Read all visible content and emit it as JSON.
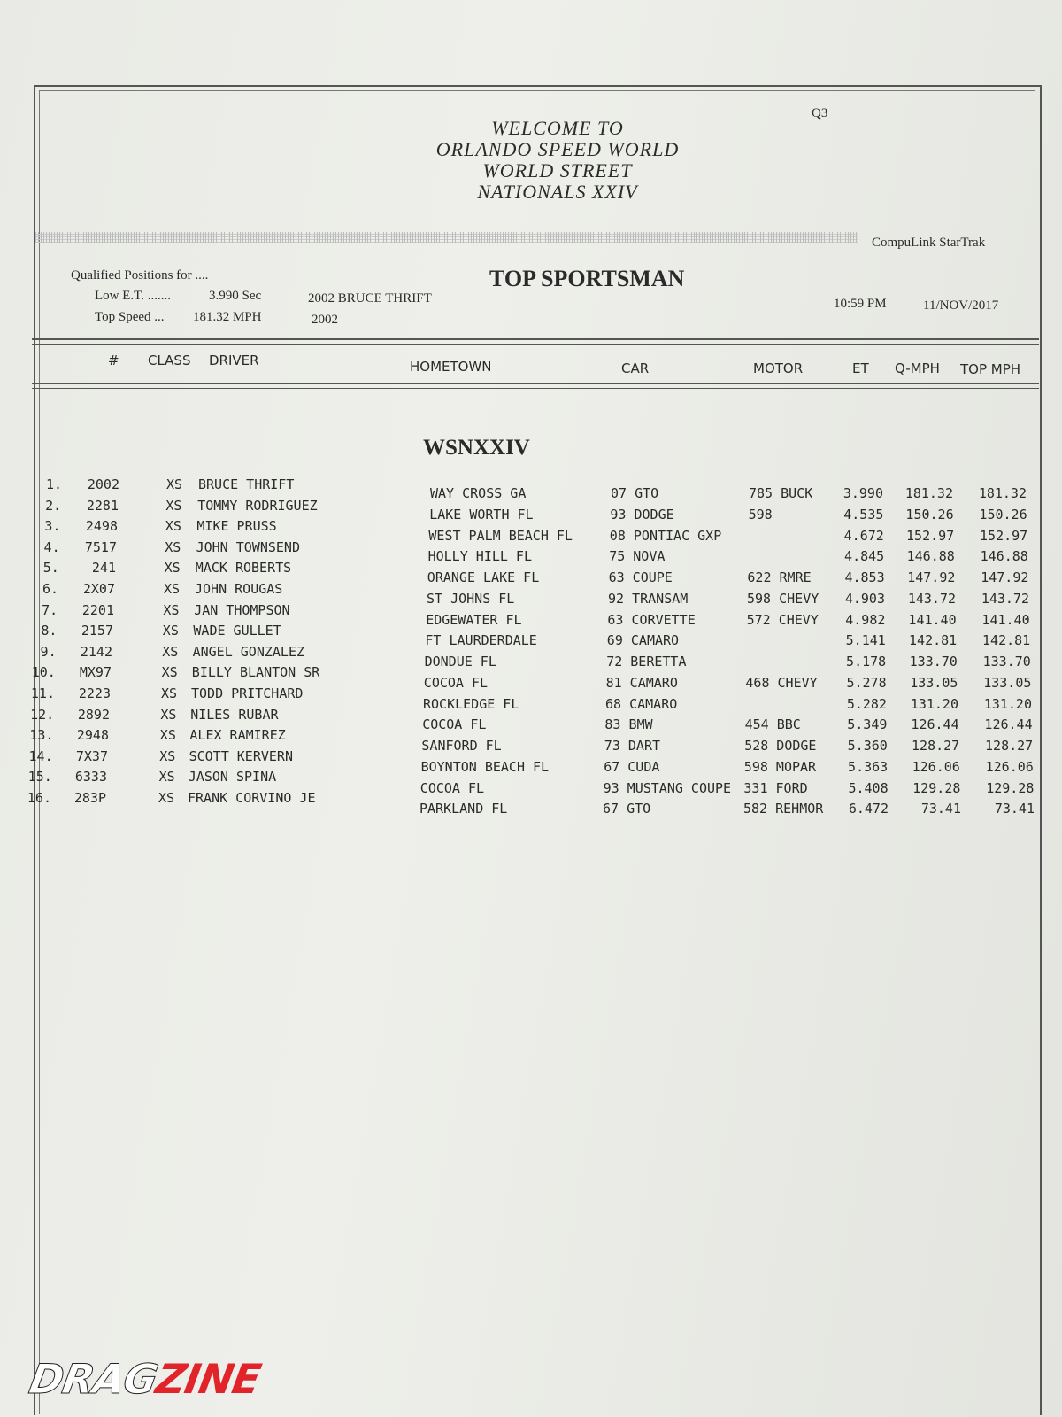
{
  "header": {
    "welcome": [
      "WELCOME TO",
      "ORLANDO SPEED WORLD",
      "WORLD STREET",
      "NATIONALS XXIV"
    ],
    "session": "Q3",
    "brand": "CompuLink  StarTrak"
  },
  "summary": {
    "qualified_label": "Qualified Positions for  ....",
    "low_et_label": "Low E.T.  .......",
    "low_et_value": "3.990  Sec",
    "low_et_car": "2002  BRUCE THRIFT",
    "top_speed_label": "Top Speed  ...",
    "top_speed_value": "181.32  MPH",
    "top_speed_car": "2002",
    "class_title": "TOP SPORTSMAN",
    "time": "10:59 PM",
    "date": "11/NOV/2017"
  },
  "columns": {
    "pos": "#",
    "class": "CLASS",
    "driver": "DRIVER",
    "hometown": "HOMETOWN",
    "car": "CAR",
    "motor": "MOTOR",
    "et": "ET",
    "qmph": "Q-MPH",
    "topmph": "TOP MPH"
  },
  "group": "WSNXXIV",
  "rows": [
    [
      "1.",
      "2002",
      "XS",
      "BRUCE THRIFT",
      "WAY CROSS GA",
      "07 GTO",
      "785 BUCK",
      "3.990",
      "181.32",
      "181.32"
    ],
    [
      "2.",
      "2281",
      "XS",
      "TOMMY RODRIGUEZ",
      "LAKE WORTH FL",
      "93 DODGE",
      "598",
      "4.535",
      "150.26",
      "150.26"
    ],
    [
      "3.",
      "2498",
      "XS",
      "MIKE PRUSS",
      "WEST PALM BEACH FL",
      "08 PONTIAC GXP",
      "",
      "4.672",
      "152.97",
      "152.97"
    ],
    [
      "4.",
      "7517",
      "XS",
      "JOHN TOWNSEND",
      "HOLLY HILL FL",
      "75 NOVA",
      "",
      "4.845",
      "146.88",
      "146.88"
    ],
    [
      "5.",
      "241",
      "XS",
      "MACK ROBERTS",
      "ORANGE LAKE FL",
      "63 COUPE",
      "622 RMRE",
      "4.853",
      "147.92",
      "147.92"
    ],
    [
      "6.",
      "2X07",
      "XS",
      "JOHN ROUGAS",
      "ST JOHNS FL",
      "92 TRANSAM",
      "598 CHEVY",
      "4.903",
      "143.72",
      "143.72"
    ],
    [
      "7.",
      "2201",
      "XS",
      "JAN THOMPSON",
      "EDGEWATER  FL",
      "63 CORVETTE",
      "572 CHEVY",
      "4.982",
      "141.40",
      "141.40"
    ],
    [
      "8.",
      "2157",
      "XS",
      "WADE GULLET",
      "FT LAURDERDALE",
      "69 CAMARO",
      "",
      "5.141",
      "142.81",
      "142.81"
    ],
    [
      "9.",
      "2142",
      "XS",
      "ANGEL GONZALEZ",
      "DONDUE FL",
      "72 BERETTA",
      "",
      "5.178",
      "133.70",
      "133.70"
    ],
    [
      "10.",
      "MX97",
      "XS",
      "BILLY BLANTON SR",
      "COCOA FL",
      "81 CAMARO",
      "468 CHEVY",
      "5.278",
      "133.05",
      "133.05"
    ],
    [
      "11.",
      "2223",
      "XS",
      "TODD PRITCHARD",
      "ROCKLEDGE FL",
      "68 CAMARO",
      "",
      "5.282",
      "131.20",
      "131.20"
    ],
    [
      "12.",
      "2892",
      "XS",
      "NILES RUBAR",
      "COCOA FL",
      "83 BMW",
      "454 BBC",
      "5.349",
      "126.44",
      "126.44"
    ],
    [
      "13.",
      "2948",
      "XS",
      "ALEX RAMIREZ",
      "SANFORD FL",
      "73 DART",
      "528 DODGE",
      "5.360",
      "128.27",
      "128.27"
    ],
    [
      "14.",
      "7X37",
      "XS",
      "SCOTT KERVERN",
      "BOYNTON BEACH FL",
      "67 CUDA",
      "598 MOPAR",
      "5.363",
      "126.06",
      "126.06"
    ],
    [
      "15.",
      "6333",
      "XS",
      "JASON SPINA",
      "COCOA FL",
      "93 MUSTANG COUPE",
      "331 FORD",
      "5.408",
      "129.28",
      "129.28"
    ],
    [
      "16.",
      "283P",
      "XS",
      "FRANK CORVINO JE",
      "PARKLAND FL",
      "67 GTO",
      "582 REHMOR",
      "6.472",
      "73.41",
      "73.41"
    ]
  ],
  "watermark": {
    "part1": "DRAG",
    "part2": "ZINE"
  }
}
